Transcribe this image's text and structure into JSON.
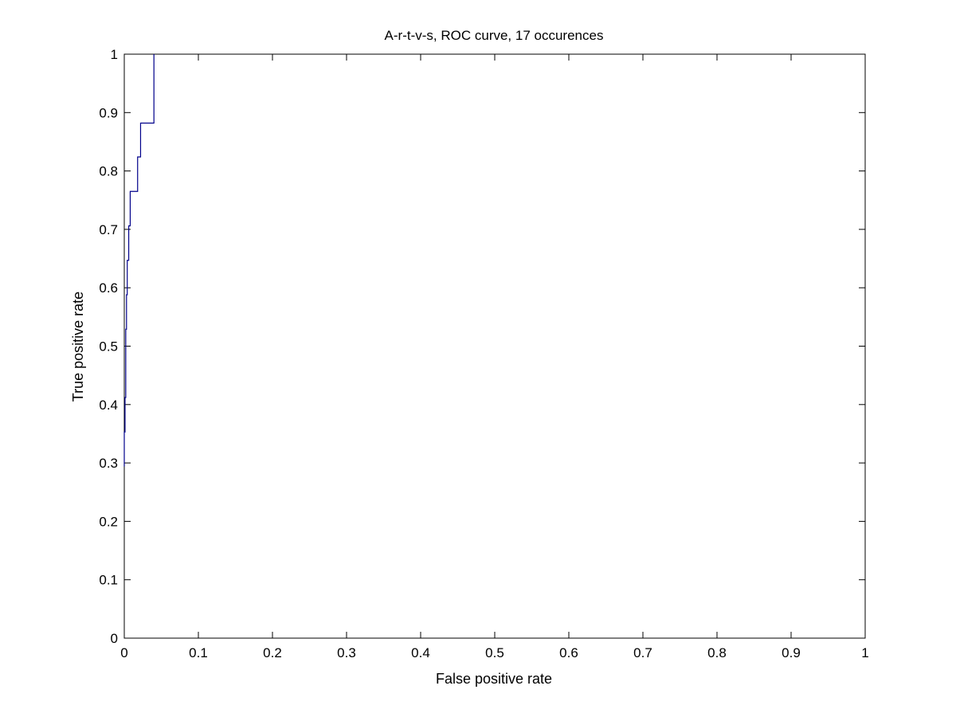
{
  "chart_data": {
    "type": "line",
    "title": "A-r-t-v-s, ROC curve, 17 occurences",
    "xlabel": "False positive rate",
    "ylabel": "True positive rate",
    "xlim": [
      0,
      1
    ],
    "ylim": [
      0,
      1
    ],
    "xticks": [
      0,
      0.1,
      0.2,
      0.3,
      0.4,
      0.5,
      0.6,
      0.7,
      0.8,
      0.9,
      1
    ],
    "xtick_labels": [
      "0",
      "0.1",
      "0.2",
      "0.3",
      "0.4",
      "0.5",
      "0.6",
      "0.7",
      "0.8",
      "0.9",
      "1"
    ],
    "yticks": [
      0,
      0.1,
      0.2,
      0.3,
      0.4,
      0.5,
      0.6,
      0.7,
      0.8,
      0.9,
      1
    ],
    "ytick_labels": [
      "0",
      "0.1",
      "0.2",
      "0.3",
      "0.4",
      "0.5",
      "0.6",
      "0.7",
      "0.8",
      "0.9",
      "1"
    ],
    "grid": false,
    "legend": "none",
    "series": [
      {
        "color": "#00008b",
        "x": [
          0,
          0,
          0.001,
          0.001,
          0.002,
          0.002,
          0.003,
          0.003,
          0.004,
          0.004,
          0.006,
          0.006,
          0.008,
          0.008,
          0.018,
          0.018,
          0.022,
          0.022,
          0.04,
          0.04
        ],
        "y": [
          0.294,
          0.353,
          0.353,
          0.412,
          0.412,
          0.529,
          0.529,
          0.588,
          0.588,
          0.647,
          0.647,
          0.706,
          0.706,
          0.765,
          0.765,
          0.824,
          0.824,
          0.882,
          0.882,
          1.0
        ]
      }
    ]
  }
}
